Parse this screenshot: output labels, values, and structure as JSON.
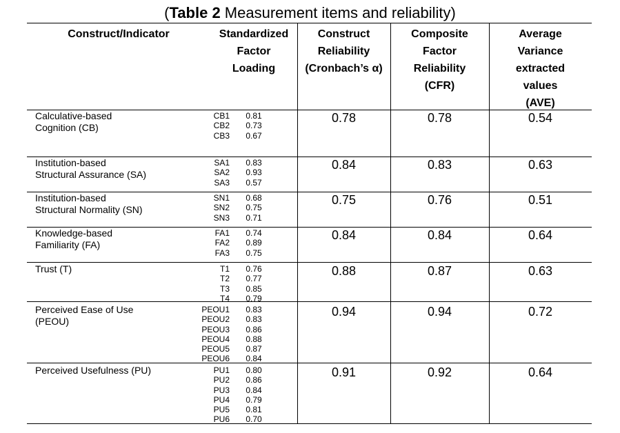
{
  "table": {
    "title_open": "(",
    "title_label": "Table 2",
    "title_text": " Measurement items and reliability)",
    "headers": {
      "construct_indicator": [
        "Construct/Indicator"
      ],
      "factor_loading": [
        "Standardized",
        "Factor",
        "Loading"
      ],
      "construct_reliability": [
        "Construct",
        "Reliability",
        "(Cronbach’s α)"
      ],
      "composite_reliability": [
        "Composite",
        "Factor",
        "Reliability",
        "(CFR)"
      ],
      "ave": [
        "Average",
        "Variance",
        "extracted",
        "values",
        "(AVE)"
      ]
    },
    "rows": [
      {
        "construct": [
          "Calculative-based",
          "Cognition (CB)"
        ],
        "indicators": [
          "CB1",
          "CB2",
          "CB3"
        ],
        "loadings": [
          "0.81",
          "0.73",
          "0.67"
        ],
        "cr": "0.78",
        "cfr": "0.78",
        "ave": "0.54"
      },
      {
        "construct": [
          "Institution-based",
          "Structural Assurance (SA)"
        ],
        "indicators": [
          "SA1",
          "SA2",
          "SA3"
        ],
        "loadings": [
          "0.83",
          "0.93",
          "0.57"
        ],
        "cr": "0.84",
        "cfr": "0.83",
        "ave": "0.63"
      },
      {
        "construct": [
          "Institution-based",
          "Structural Normality (SN)"
        ],
        "indicators": [
          "SN1",
          "SN2",
          "SN3"
        ],
        "loadings": [
          "0.68",
          "0.75",
          "0.71"
        ],
        "cr": "0.75",
        "cfr": "0.76",
        "ave": "0.51"
      },
      {
        "construct": [
          "Knowledge-based",
          "Familiarity (FA)"
        ],
        "indicators": [
          "FA1",
          "FA2",
          "FA3"
        ],
        "loadings": [
          "0.74",
          "0.89",
          "0.75"
        ],
        "cr": "0.84",
        "cfr": "0.84",
        "ave": "0.64"
      },
      {
        "construct": [
          "Trust (T)"
        ],
        "indicators": [
          "T1",
          "T2",
          "T3",
          "T4"
        ],
        "loadings": [
          "0.76",
          "0.77",
          "0.85",
          "0.79"
        ],
        "cr": "0.88",
        "cfr": "0.87",
        "ave": "0.63"
      },
      {
        "construct": [
          "Perceived Ease of Use",
          "(PEOU)"
        ],
        "indicators": [
          "PEOU1",
          "PEOU2",
          "PEOU3",
          "PEOU4",
          "PEOU5",
          "PEOU6"
        ],
        "loadings": [
          "0.83",
          "0.83",
          "0.86",
          "0.88",
          "0.87",
          "0.84"
        ],
        "cr": "0.94",
        "cfr": "0.94",
        "ave": "0.72"
      },
      {
        "construct": [
          "Perceived Usefulness (PU)"
        ],
        "indicators": [
          "PU1",
          "PU2",
          "PU3",
          "PU4",
          "PU5",
          "PU6"
        ],
        "loadings": [
          "0.80",
          "0.86",
          "0.84",
          "0.79",
          "0.81",
          "0.70"
        ],
        "cr": "0.91",
        "cfr": "0.92",
        "ave": "0.64"
      }
    ]
  }
}
